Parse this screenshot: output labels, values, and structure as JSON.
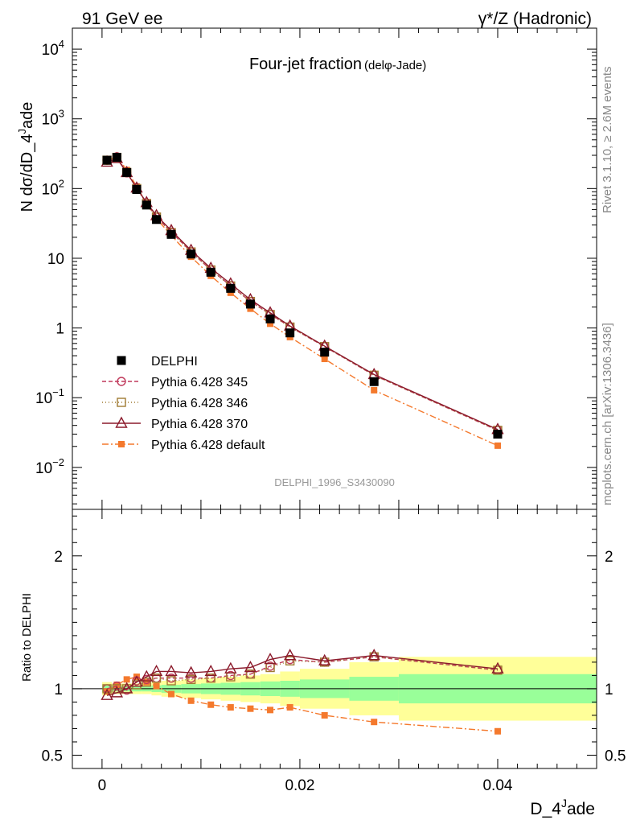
{
  "header": {
    "left": "91 GeV ee",
    "right": "γ*/Z (Hadronic)"
  },
  "side": {
    "rivet": "Rivet 3.1.10, ≥ 2.6M events",
    "mcplots": "mcplots.cern.ch [arXiv:1306.3436]"
  },
  "chart_data": {
    "type": "scatter",
    "title": "Four-jet fraction",
    "subtitle": "(delφ-Jade)",
    "xlabel": "D_4^Jade",
    "ylabel": "N dσ/dD_4^Jade",
    "ratio_ylabel": "Ratio to DELPHI",
    "analysis_id": "DELPHI_1996_S3430090",
    "xlim": [
      -0.003,
      0.05
    ],
    "ylim": [
      0.0025,
      20000
    ],
    "ratio_ylim": [
      0.4,
      2.35
    ],
    "x_ticks": [
      {
        "v": 0,
        "label": "0"
      },
      {
        "v": 0.02,
        "label": "0.02"
      },
      {
        "v": 0.04,
        "label": "0.04"
      }
    ],
    "y_ticks": [
      {
        "v": 0.01,
        "base": "10",
        "exp": "−2"
      },
      {
        "v": 0.1,
        "base": "10",
        "exp": "−1"
      },
      {
        "v": 1,
        "base": "1",
        "exp": ""
      },
      {
        "v": 10,
        "base": "10",
        "exp": ""
      },
      {
        "v": 100,
        "base": "10",
        "exp": "2"
      },
      {
        "v": 1000,
        "base": "10",
        "exp": "3"
      },
      {
        "v": 10000,
        "base": "10",
        "exp": "4"
      }
    ],
    "ratio_ticks": [
      {
        "v": 0.5,
        "label": "0.5"
      },
      {
        "v": 1,
        "label": "1"
      },
      {
        "v": 2,
        "label": "2"
      }
    ],
    "x": [
      0.0005,
      0.0015,
      0.0025,
      0.0035,
      0.0045,
      0.0055,
      0.007,
      0.009,
      0.011,
      0.013,
      0.015,
      0.017,
      0.019,
      0.0225,
      0.0275,
      0.04
    ],
    "bin_edges": [
      0,
      0.001,
      0.002,
      0.003,
      0.004,
      0.005,
      0.006,
      0.008,
      0.01,
      0.012,
      0.014,
      0.016,
      0.018,
      0.02,
      0.025,
      0.03,
      0.05
    ],
    "band_inner": [
      0.025,
      0.02,
      0.02,
      0.02,
      0.02,
      0.025,
      0.03,
      0.035,
      0.04,
      0.045,
      0.05,
      0.055,
      0.06,
      0.07,
      0.09,
      0.11
    ],
    "band_outer": [
      0.05,
      0.04,
      0.04,
      0.04,
      0.04,
      0.05,
      0.06,
      0.07,
      0.08,
      0.09,
      0.1,
      0.11,
      0.13,
      0.15,
      0.2,
      0.24
    ],
    "series": [
      {
        "name": "DELPHI",
        "color": "#000000",
        "values": [
          255,
          280,
          170,
          97,
          58,
          36,
          22,
          11.5,
          6.3,
          3.7,
          2.2,
          1.35,
          0.85,
          0.45,
          0.17,
          0.03
        ]
      },
      {
        "name": "Pythia 6.428 345",
        "color": "#c0395b",
        "values": [
          255,
          286,
          168,
          103,
          62,
          39,
          23.7,
          12.4,
          6.8,
          4.05,
          2.4,
          1.58,
          1.04,
          0.54,
          0.21,
          0.034
        ],
        "ratio": [
          1.0,
          1.02,
          0.99,
          1.06,
          1.07,
          1.08,
          1.08,
          1.08,
          1.08,
          1.1,
          1.11,
          1.17,
          1.22,
          1.2,
          1.24,
          1.14
        ]
      },
      {
        "name": "Pythia 6.428 346",
        "color": "#a07b32",
        "values": [
          255,
          280,
          170,
          100,
          61,
          39,
          23.3,
          12.3,
          6.8,
          4.0,
          2.4,
          1.56,
          1.03,
          0.54,
          0.21,
          0.034
        ],
        "ratio": [
          1.0,
          1.0,
          1.0,
          1.03,
          1.05,
          1.08,
          1.06,
          1.07,
          1.08,
          1.09,
          1.11,
          1.16,
          1.21,
          1.2,
          1.24,
          1.14
        ]
      },
      {
        "name": "Pythia 6.428 370",
        "color": "#8b1a2b",
        "values": [
          240,
          270,
          170,
          102,
          63,
          41,
          25,
          13,
          7.2,
          4.3,
          2.55,
          1.65,
          1.07,
          0.55,
          0.215,
          0.035
        ],
        "ratio": [
          0.95,
          0.97,
          1.0,
          1.05,
          1.09,
          1.13,
          1.13,
          1.12,
          1.13,
          1.15,
          1.16,
          1.22,
          1.25,
          1.21,
          1.25,
          1.15
        ]
      },
      {
        "name": "Pythia 6.428 default",
        "color": "#f4792d",
        "values": [
          250,
          290,
          185,
          107,
          61,
          37,
          21.3,
          10.5,
          5.6,
          3.2,
          1.89,
          1.15,
          0.74,
          0.36,
          0.128,
          0.0205
        ],
        "ratio": [
          0.98,
          1.03,
          1.07,
          1.09,
          1.05,
          1.02,
          0.96,
          0.91,
          0.88,
          0.86,
          0.85,
          0.84,
          0.86,
          0.8,
          0.75,
          0.68
        ]
      }
    ]
  }
}
